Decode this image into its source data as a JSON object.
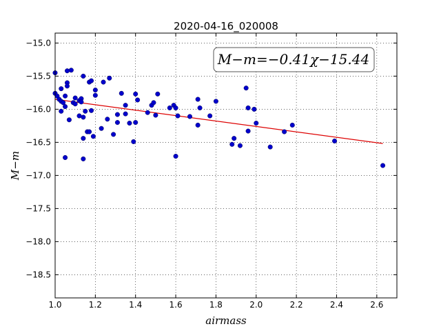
{
  "chart_data": {
    "type": "scatter",
    "title": "2020-04-16_020008",
    "xlabel": "airmass",
    "ylabel": "M−m",
    "xlim": [
      1.0,
      2.7
    ],
    "ylim": [
      -18.85,
      -14.85
    ],
    "y_inverted": true,
    "grid": true,
    "grid_style": "dotted",
    "x_ticks": [
      1.0,
      1.2,
      1.4,
      1.6,
      1.8,
      2.0,
      2.2,
      2.4,
      2.6
    ],
    "x_tick_labels": [
      "1.0",
      "1.2",
      "1.4",
      "1.6",
      "1.8",
      "2.0",
      "2.2",
      "2.4",
      "2.6"
    ],
    "y_ticks": [
      -15.0,
      -15.5,
      -16.0,
      -16.5,
      -17.0,
      -17.5,
      -18.0,
      -18.5
    ],
    "y_tick_labels": [
      "−15.0",
      "−15.5",
      "−16.0",
      "−16.5",
      "−17.0",
      "−17.5",
      "−18.0",
      "−18.5"
    ],
    "annotation": "M−m=−0.41χ−15.44",
    "annotation_position": "top-right",
    "point_color": "#0000cc",
    "fit_color": "#dd0000",
    "fit": {
      "slope": -0.41,
      "intercept": -15.44,
      "x_range": [
        1.0,
        2.63
      ]
    },
    "points": [
      [
        1.0,
        -15.45
      ],
      [
        1.0,
        -15.76
      ],
      [
        1.01,
        -15.8
      ],
      [
        1.02,
        -15.85
      ],
      [
        1.03,
        -15.88
      ],
      [
        1.03,
        -15.69
      ],
      [
        1.03,
        -16.03
      ],
      [
        1.04,
        -15.9
      ],
      [
        1.05,
        -15.96
      ],
      [
        1.05,
        -15.8
      ],
      [
        1.06,
        -15.6
      ],
      [
        1.06,
        -15.65
      ],
      [
        1.06,
        -15.42
      ],
      [
        1.05,
        -16.73
      ],
      [
        1.07,
        -16.16
      ],
      [
        1.08,
        -15.41
      ],
      [
        1.09,
        -15.9
      ],
      [
        1.1,
        -15.83
      ],
      [
        1.1,
        -15.92
      ],
      [
        1.12,
        -16.1
      ],
      [
        1.12,
        -15.87
      ],
      [
        1.13,
        -15.84
      ],
      [
        1.13,
        -15.89
      ],
      [
        1.14,
        -15.5
      ],
      [
        1.14,
        -16.12
      ],
      [
        1.14,
        -16.44
      ],
      [
        1.14,
        -16.75
      ],
      [
        1.15,
        -16.03
      ],
      [
        1.16,
        -16.34
      ],
      [
        1.17,
        -16.34
      ],
      [
        1.17,
        -15.59
      ],
      [
        1.18,
        -15.57
      ],
      [
        1.18,
        -16.02
      ],
      [
        1.19,
        -16.41
      ],
      [
        1.2,
        -15.79
      ],
      [
        1.2,
        -15.71
      ],
      [
        1.23,
        -16.29
      ],
      [
        1.24,
        -15.59
      ],
      [
        1.26,
        -16.15
      ],
      [
        1.27,
        -15.53
      ],
      [
        1.29,
        -16.38
      ],
      [
        1.31,
        -16.08
      ],
      [
        1.31,
        -16.2
      ],
      [
        1.33,
        -15.76
      ],
      [
        1.35,
        -15.94
      ],
      [
        1.35,
        -16.07
      ],
      [
        1.37,
        -16.21
      ],
      [
        1.39,
        -16.49
      ],
      [
        1.4,
        -15.77
      ],
      [
        1.4,
        -16.2
      ],
      [
        1.41,
        -15.86
      ],
      [
        1.46,
        -16.05
      ],
      [
        1.48,
        -15.94
      ],
      [
        1.49,
        -15.9
      ],
      [
        1.5,
        -16.09
      ],
      [
        1.51,
        -15.77
      ],
      [
        1.57,
        -15.98
      ],
      [
        1.59,
        -15.94
      ],
      [
        1.6,
        -15.98
      ],
      [
        1.6,
        -16.71
      ],
      [
        1.61,
        -16.1
      ],
      [
        1.67,
        -16.11
      ],
      [
        1.71,
        -15.85
      ],
      [
        1.71,
        -16.24
      ],
      [
        1.72,
        -15.98
      ],
      [
        1.77,
        -16.1
      ],
      [
        1.8,
        -15.88
      ],
      [
        1.88,
        -16.53
      ],
      [
        1.89,
        -16.44
      ],
      [
        1.92,
        -16.55
      ],
      [
        1.95,
        -15.68
      ],
      [
        1.96,
        -16.33
      ],
      [
        1.96,
        -15.98
      ],
      [
        1.99,
        -16.0
      ],
      [
        2.0,
        -16.21
      ],
      [
        2.07,
        -16.57
      ],
      [
        2.14,
        -16.34
      ],
      [
        2.18,
        -16.24
      ],
      [
        2.39,
        -16.48
      ],
      [
        2.63,
        -16.85
      ]
    ]
  }
}
